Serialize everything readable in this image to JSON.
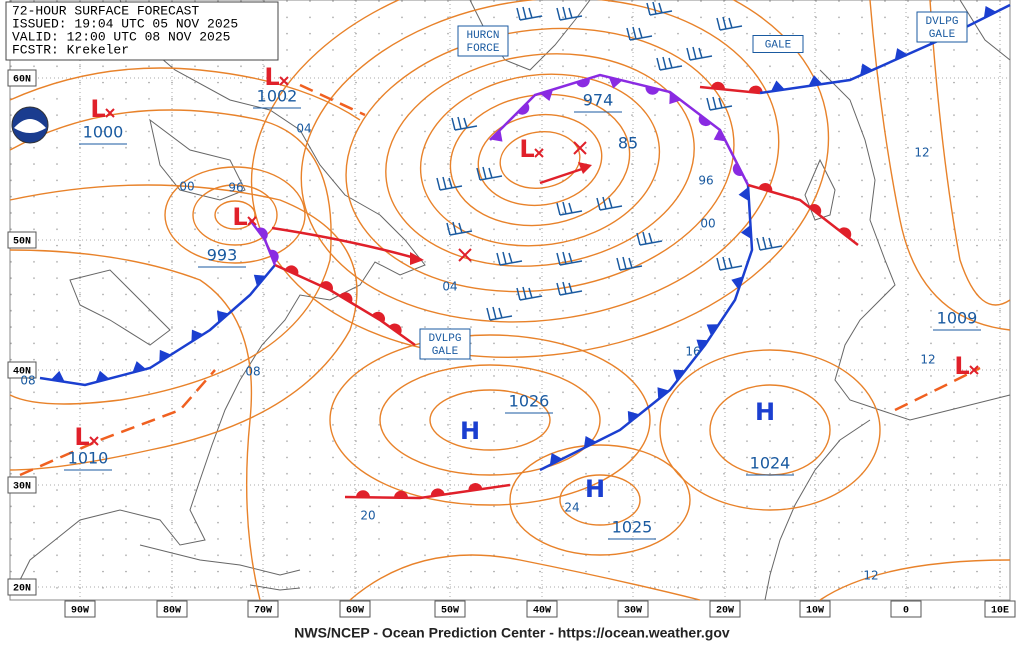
{
  "header": {
    "lines": [
      "72-HOUR SURFACE FORECAST",
      "ISSUED: 19:04 UTC 05 NOV 2025",
      "VALID: 12:00 UTC 08 NOV 2025",
      "FCSTR: Krekeler"
    ]
  },
  "footer": "NWS/NCEP - Ocean Prediction Center - https://ocean.weather.gov",
  "latitudes": [
    "60N",
    "50N",
    "40N",
    "30N",
    "20N"
  ],
  "longitudes": [
    "90W",
    "80W",
    "70W",
    "60W",
    "50W",
    "40W",
    "30W",
    "20W",
    "10W",
    "0",
    "10E"
  ],
  "centers": [
    {
      "symbol": "L",
      "pressure": "1000"
    },
    {
      "symbol": "L",
      "pressure": "1002"
    },
    {
      "symbol": "L",
      "pressure": "993"
    },
    {
      "symbol": "L",
      "pressure": "974"
    },
    {
      "symbol": "L",
      "pressure": "1010"
    },
    {
      "symbol": "H",
      "pressure": "1026"
    },
    {
      "symbol": "H",
      "pressure": "1025"
    },
    {
      "symbol": "H",
      "pressure": "1024"
    },
    {
      "symbol": "L",
      "pressure": "1009"
    }
  ],
  "isobar_labels": [
    "04",
    "00",
    "96",
    "08",
    "04",
    "16",
    "00",
    "96",
    "12",
    "12",
    "20",
    "24",
    "12",
    "08",
    "85"
  ],
  "warnings": [
    {
      "lines": [
        "HURCN",
        "FORCE"
      ]
    },
    {
      "lines": [
        "GALE"
      ]
    },
    {
      "lines": [
        "DVLPG",
        "GALE"
      ]
    },
    {
      "lines": [
        "DVLPG",
        "GALE"
      ]
    }
  ]
}
